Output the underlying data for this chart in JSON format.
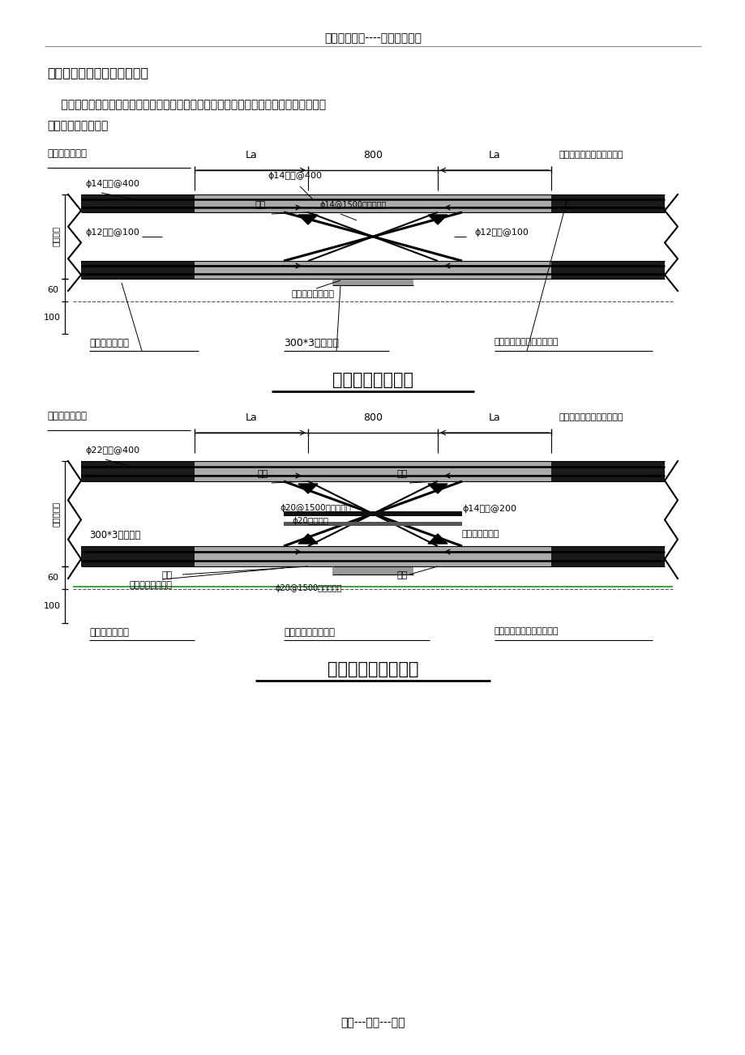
{
  "page_width": 9.2,
  "page_height": 13.02,
  "bg_color": "#ffffff",
  "header_text": "精选优质文档----倾情为你奉上",
  "footer_text": "专心---专注---专业",
  "section_title": "二、后浇带及上挡墙加固设计",
  "body_text1": "    根据施工图纸及规范要求，后浇带及上挡墙均采用钢板止水，为更好的的指导现场施工，",
  "body_text2": "编制以下加固方案：",
  "diagram1_title": "抗水板后浇带构造",
  "diagram2_title": "基础底板后浇带构造"
}
